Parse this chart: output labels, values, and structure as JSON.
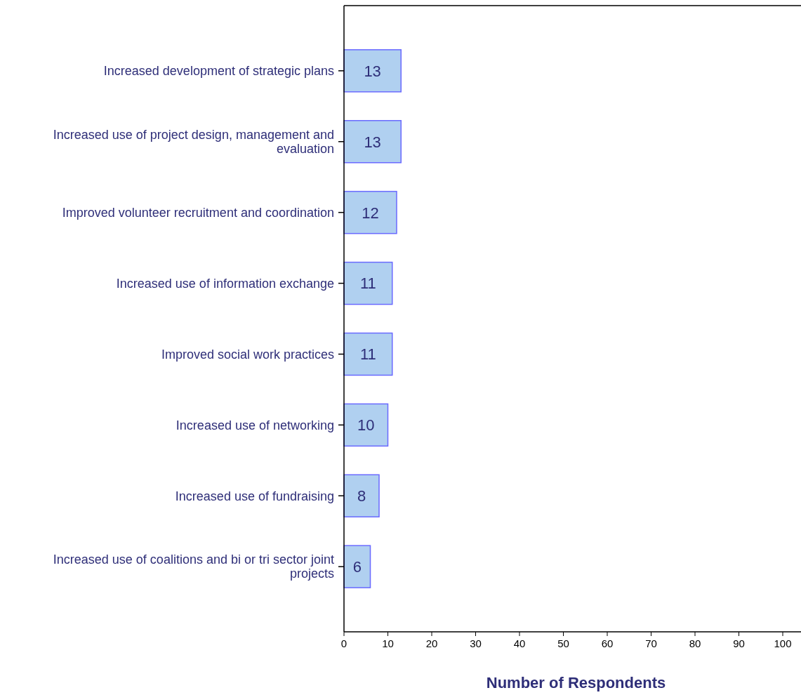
{
  "chart_data": {
    "type": "bar",
    "orientation": "horizontal",
    "xlabel": "Number of Respondents",
    "categories": [
      "Increased development of strategic plans",
      "Increased use of project design, management and evaluation",
      "Improved volunteer recruitment and coordination",
      "Increased use of information exchange",
      "Improved social work practices",
      "Increased use of networking",
      "Increased use of fundraising",
      "Increased use of coalitions and bi or tri sector joint projects"
    ],
    "values": [
      13,
      13,
      12,
      11,
      11,
      10,
      8,
      6
    ],
    "color": "#b0d0f0",
    "xlim": [
      0,
      104
    ],
    "xticks": [
      0,
      10,
      20,
      30,
      40,
      50,
      60,
      70,
      80,
      90,
      100
    ],
    "data_labels": true,
    "grid": false
  }
}
